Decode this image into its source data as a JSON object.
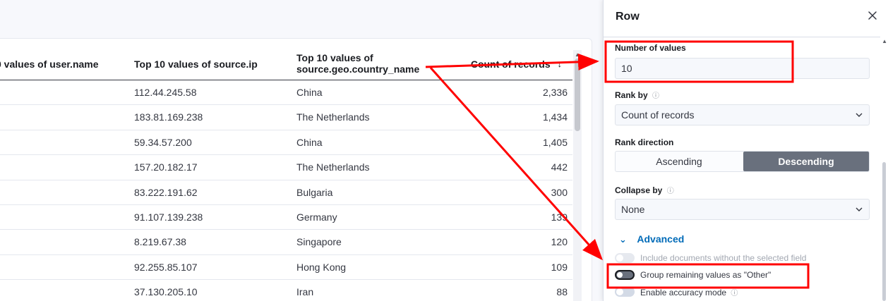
{
  "table": {
    "headers": {
      "user": "0 values of user.name",
      "source_ip": "Top 10 values of source.ip",
      "country_line1": "Top 10 values of",
      "country_line2": "source.geo.country_name",
      "count": "Count of records"
    },
    "sort_icon": "sort-descending-icon",
    "rows": [
      {
        "ip": "112.44.245.58",
        "country": "China",
        "count": "2,336"
      },
      {
        "ip": "183.81.169.238",
        "country": "The Netherlands",
        "count": "1,434"
      },
      {
        "ip": "59.34.57.200",
        "country": "China",
        "count": "1,405"
      },
      {
        "ip": "157.20.182.17",
        "country": "The Netherlands",
        "count": "442"
      },
      {
        "ip": "83.222.191.62",
        "country": "Bulgaria",
        "count": "300"
      },
      {
        "ip": "91.107.139.238",
        "country": "Germany",
        "count": "139"
      },
      {
        "ip": "8.219.67.38",
        "country": "Singapore",
        "count": "120"
      },
      {
        "ip": "92.255.85.107",
        "country": "Hong Kong",
        "count": "109"
      },
      {
        "ip": "37.130.205.10",
        "country": "Iran",
        "count": "88"
      }
    ]
  },
  "flyout": {
    "title": "Row",
    "number_label": "Number of values",
    "number_value": "10",
    "rank_label": "Rank by",
    "rank_value": "Count of records",
    "direction_label": "Rank direction",
    "ascending": "Ascending",
    "descending": "Descending",
    "collapse_label": "Collapse by",
    "collapse_value": "None",
    "advanced": "Advanced",
    "include_docs": "Include documents without the selected field",
    "group_other": "Group remaining values as \"Other\"",
    "accuracy": "Enable accuracy mode",
    "help_icon": "ⓘ"
  },
  "colors": {
    "accent": "#006bb8",
    "annotation": "#ff0000",
    "selected_segment": "#69707d"
  }
}
